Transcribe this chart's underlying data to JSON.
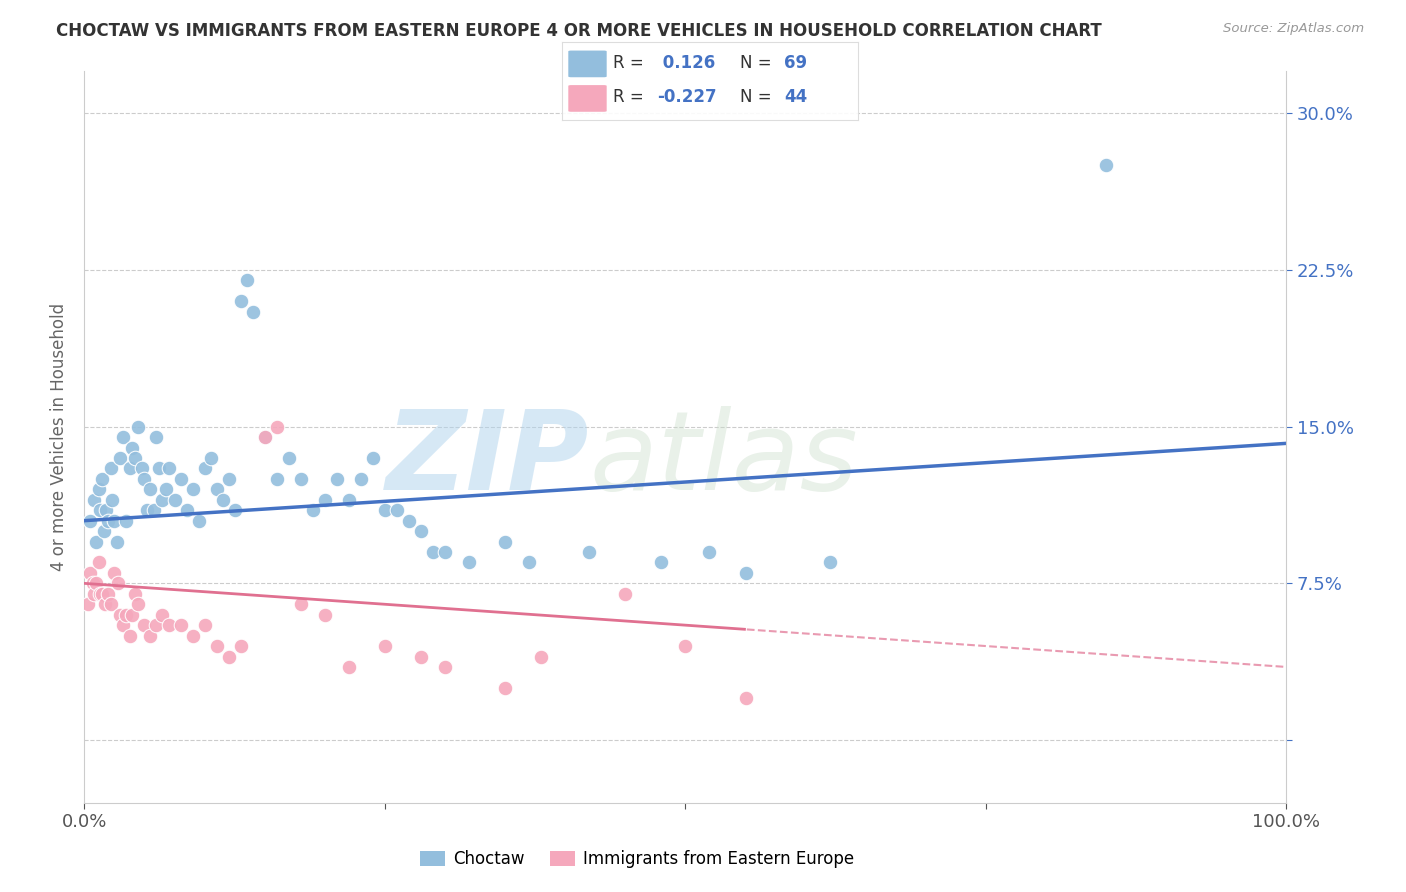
{
  "title": "CHOCTAW VS IMMIGRANTS FROM EASTERN EUROPE 4 OR MORE VEHICLES IN HOUSEHOLD CORRELATION CHART",
  "source": "Source: ZipAtlas.com",
  "ylabel": "4 or more Vehicles in Household",
  "xlabel": "",
  "xlim": [
    0,
    100
  ],
  "ylim": [
    -3,
    32
  ],
  "yticks": [
    0,
    7.5,
    15.0,
    22.5,
    30.0
  ],
  "xticks": [
    0,
    25,
    50,
    75,
    100
  ],
  "xtick_labels": [
    "0.0%",
    "",
    "",
    "",
    "100.0%"
  ],
  "ytick_labels_right": [
    "",
    "7.5%",
    "15.0%",
    "22.5%",
    "30.0%"
  ],
  "blue_color": "#93bedd",
  "pink_color": "#f5a8bc",
  "blue_line_color": "#4472c4",
  "pink_line_color": "#e07090",
  "R_blue": 0.126,
  "N_blue": 69,
  "R_pink": -0.227,
  "N_pink": 44,
  "blue_intercept": 10.5,
  "blue_slope": 0.037,
  "pink_intercept": 7.5,
  "pink_slope": -0.04,
  "pink_dash_start": 55,
  "watermark_zip": "ZIP",
  "watermark_atlas": "atlas",
  "legend_label_blue": "Choctaw",
  "legend_label_pink": "Immigrants from Eastern Europe",
  "blue_x": [
    0.5,
    0.8,
    1.0,
    1.2,
    1.3,
    1.5,
    1.6,
    1.8,
    2.0,
    2.2,
    2.3,
    2.5,
    2.7,
    3.0,
    3.2,
    3.5,
    3.8,
    4.0,
    4.2,
    4.5,
    4.8,
    5.0,
    5.2,
    5.5,
    5.8,
    6.0,
    6.2,
    6.5,
    6.8,
    7.0,
    7.5,
    8.0,
    8.5,
    9.0,
    9.5,
    10.0,
    10.5,
    11.0,
    11.5,
    12.0,
    12.5,
    13.0,
    13.5,
    14.0,
    15.0,
    16.0,
    17.0,
    18.0,
    19.0,
    20.0,
    21.0,
    22.0,
    23.0,
    24.0,
    25.0,
    26.0,
    27.0,
    28.0,
    29.0,
    30.0,
    32.0,
    35.0,
    37.0,
    42.0,
    48.0,
    52.0,
    55.0,
    62.0,
    85.0
  ],
  "blue_y": [
    10.5,
    11.5,
    9.5,
    12.0,
    11.0,
    12.5,
    10.0,
    11.0,
    10.5,
    13.0,
    11.5,
    10.5,
    9.5,
    13.5,
    14.5,
    10.5,
    13.0,
    14.0,
    13.5,
    15.0,
    13.0,
    12.5,
    11.0,
    12.0,
    11.0,
    14.5,
    13.0,
    11.5,
    12.0,
    13.0,
    11.5,
    12.5,
    11.0,
    12.0,
    10.5,
    13.0,
    13.5,
    12.0,
    11.5,
    12.5,
    11.0,
    21.0,
    22.0,
    20.5,
    14.5,
    12.5,
    13.5,
    12.5,
    11.0,
    11.5,
    12.5,
    11.5,
    12.5,
    13.5,
    11.0,
    11.0,
    10.5,
    10.0,
    9.0,
    9.0,
    8.5,
    9.5,
    8.5,
    9.0,
    8.5,
    9.0,
    8.0,
    8.5,
    27.5
  ],
  "pink_x": [
    0.3,
    0.5,
    0.7,
    0.8,
    1.0,
    1.2,
    1.3,
    1.5,
    1.7,
    2.0,
    2.2,
    2.5,
    2.8,
    3.0,
    3.2,
    3.5,
    3.8,
    4.0,
    4.2,
    4.5,
    5.0,
    5.5,
    6.0,
    6.5,
    7.0,
    8.0,
    9.0,
    10.0,
    11.0,
    12.0,
    13.0,
    15.0,
    16.0,
    18.0,
    20.0,
    22.0,
    25.0,
    28.0,
    30.0,
    35.0,
    38.0,
    45.0,
    50.0,
    55.0
  ],
  "pink_y": [
    6.5,
    8.0,
    7.5,
    7.0,
    7.5,
    8.5,
    7.0,
    7.0,
    6.5,
    7.0,
    6.5,
    8.0,
    7.5,
    6.0,
    5.5,
    6.0,
    5.0,
    6.0,
    7.0,
    6.5,
    5.5,
    5.0,
    5.5,
    6.0,
    5.5,
    5.5,
    5.0,
    5.5,
    4.5,
    4.0,
    4.5,
    14.5,
    15.0,
    6.5,
    6.0,
    3.5,
    4.5,
    4.0,
    3.5,
    2.5,
    4.0,
    7.0,
    4.5,
    2.0
  ]
}
